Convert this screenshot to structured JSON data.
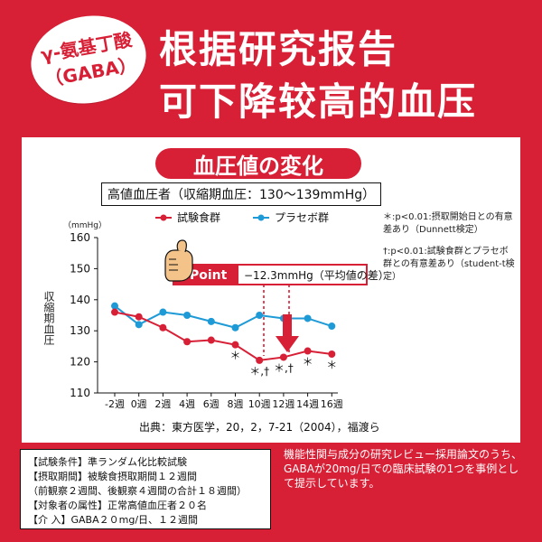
{
  "header": {
    "badge_line1": "γ-氨基丁酸",
    "badge_line2": "（GABA）",
    "title_line1": "根据研究报告",
    "title_line2": "可下降较高的血压"
  },
  "chart": {
    "pill_title": "血圧値の変化",
    "subtitle": "高値血圧者（収縮期血圧：130〜139mmHg）",
    "unit": "（mmHg）",
    "ylabel": "収縮期血圧",
    "legend": {
      "test_label": "試験食群",
      "placebo_label": "プラセボ群"
    },
    "notes": [
      "＊:p<0.01:摂取開始日との有意差あり（Dunnett検定）",
      "†:p<0.01:試験食群とプラセボ群との有意差あり（student-t検定）"
    ],
    "callout_point": "Point",
    "callout_text": "−12.3mmHg（平均値の差）",
    "source": "出典：東方医学，20，2，7-21（2004），福渡ら",
    "colors": {
      "accent_red": "#d71f35",
      "test_series": "#d71f35",
      "placebo_series": "#1e9ad6"
    }
  },
  "chart_data": {
    "type": "line",
    "title": "血圧値の変化",
    "subtitle": "高値血圧者（収縮期血圧：130〜139mmHg）",
    "xlabel": "",
    "ylabel": "収縮期血圧",
    "yunit": "（mmHg）",
    "ylim": [
      110,
      160
    ],
    "yticks": [
      110,
      120,
      130,
      140,
      150,
      160
    ],
    "categories": [
      "-2週",
      "0週",
      "2週",
      "4週",
      "6週",
      "8週",
      "10週",
      "12週",
      "14週",
      "16週"
    ],
    "series": [
      {
        "name": "試験食群",
        "values": [
          136,
          134.5,
          131,
          126.5,
          127,
          125.5,
          120.5,
          121.5,
          123.5,
          122.5
        ]
      },
      {
        "name": "プラセボ群",
        "values": [
          138,
          132,
          136,
          135,
          133,
          131,
          135,
          134,
          134,
          131.5
        ]
      }
    ],
    "annotations": [
      {
        "category": "8週",
        "text": "＊"
      },
      {
        "category": "10週",
        "text": "＊,†"
      },
      {
        "category": "12週",
        "text": "＊,†"
      },
      {
        "category": "14週",
        "text": "＊"
      },
      {
        "category": "16週",
        "text": "＊"
      }
    ],
    "grid": false,
    "legend_position": "top"
  },
  "conditions": {
    "lines": [
      "【試験条件】準ランダム化比較試験",
      "【摂取期間】被験食摂取期間１２週間",
      "（前観察２週間、後観察４週間の合計１８週間）",
      "【対象者の属性】正常高値血圧者２０名",
      "【介 入】GABA２０mg/日、１２週間"
    ]
  },
  "footer": {
    "description": "機能性関与成分の研究レビュー採用論文のうち、GABAが20mg/日での臨床試験の1つを事例として提示しています。"
  }
}
